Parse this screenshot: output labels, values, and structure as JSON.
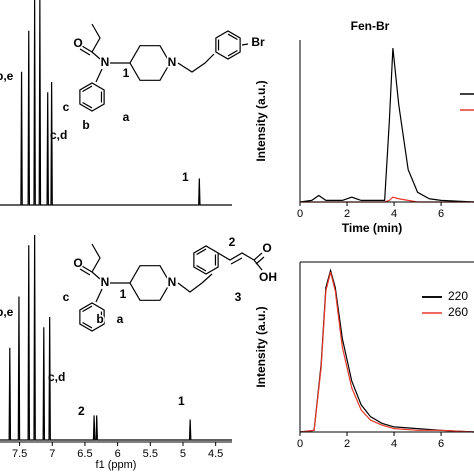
{
  "chart_data": [
    {
      "type": "line",
      "x": [
        7.8,
        7.48,
        7.47,
        7.46,
        7.37,
        7.36,
        7.35,
        7.28,
        7.27,
        7.26,
        7.2,
        7.19,
        7.18,
        7.08,
        7.07,
        7.06,
        7.02,
        7.01,
        7.0,
        4.76,
        4.75,
        4.74,
        4.25
      ],
      "series": [
        {
          "color": "#000000",
          "values": [
            0,
            0,
            0.65,
            0,
            0,
            0.85,
            0,
            0,
            1.0,
            0,
            0,
            1.0,
            0,
            0,
            0.55,
            0,
            0,
            0.6,
            0,
            0,
            0.13,
            0,
            0
          ]
        }
      ],
      "xlim": [
        7.8,
        4.25
      ],
      "ylim": [
        0,
        1
      ],
      "annotations": [
        "b,e",
        "c,d",
        "1"
      ]
    },
    {
      "type": "line",
      "x": [
        7.8,
        7.66,
        7.65,
        7.64,
        7.52,
        7.51,
        7.5,
        7.37,
        7.36,
        7.35,
        7.28,
        7.27,
        7.26,
        7.14,
        7.13,
        7.12,
        7.05,
        7.04,
        7.03,
        6.37,
        6.36,
        6.35,
        6.33,
        6.32,
        6.31,
        4.9,
        4.89,
        4.88,
        4.25
      ],
      "series": [
        {
          "color": "#000000",
          "values": [
            0,
            0,
            0.45,
            0,
            0,
            0.7,
            0,
            0,
            0.95,
            0,
            0,
            1.0,
            0,
            0,
            0.55,
            0,
            0,
            0.6,
            0,
            0,
            0.12,
            0,
            0,
            0.12,
            0,
            0,
            0.1,
            0,
            0
          ]
        }
      ],
      "xlim": [
        7.8,
        4.25
      ],
      "ylim": [
        0,
        1
      ],
      "xticks": [
        7.5,
        7.0,
        6.5,
        6.0,
        5.5,
        5.0,
        4.5
      ],
      "xlabel": "f1 (ppm)",
      "annotations": [
        "b,e",
        "c,d",
        "2",
        "1"
      ]
    },
    {
      "type": "line",
      "title": "Fen-Br",
      "xlabel": "Time (min)",
      "ylabel": "Intensity (a.u.)",
      "x": [
        0,
        0.5,
        0.8,
        1.1,
        1.8,
        2.2,
        2.6,
        3.6,
        3.8,
        3.95,
        4.2,
        4.6,
        5,
        5.5,
        6,
        7.4
      ],
      "series": [
        {
          "color": "#000000",
          "values": [
            0,
            0.01,
            0.04,
            0.01,
            0.01,
            0.03,
            0.01,
            0.01,
            0.5,
            0.95,
            0.6,
            0.2,
            0.06,
            0.02,
            0.01,
            0
          ]
        },
        {
          "color": "#e8382a",
          "values": [
            0,
            0,
            0,
            0,
            0,
            0,
            0,
            0,
            0.01,
            0.03,
            0.02,
            0.01,
            0,
            0,
            0,
            0
          ]
        }
      ],
      "xlim": [
        0,
        7.4
      ],
      "ylim": [
        0,
        1
      ],
      "xticks": [
        0,
        2,
        4,
        6
      ]
    },
    {
      "type": "line",
      "ylabel": "Intensity (a.u.)",
      "x": [
        0,
        0.6,
        0.9,
        1.1,
        1.3,
        1.5,
        1.8,
        2.2,
        2.6,
        3,
        3.5,
        4,
        5,
        6,
        7.4
      ],
      "series": [
        {
          "name": "220",
          "color": "#000000",
          "values": [
            0,
            0.01,
            0.4,
            0.85,
            0.95,
            0.85,
            0.55,
            0.3,
            0.16,
            0.09,
            0.05,
            0.03,
            0.02,
            0.01,
            0
          ]
        },
        {
          "name": "260",
          "color": "#e8382a",
          "values": [
            0,
            0.01,
            0.38,
            0.83,
            0.94,
            0.83,
            0.5,
            0.26,
            0.13,
            0.07,
            0.04,
            0.02,
            0.01,
            0.01,
            0
          ]
        }
      ],
      "xlim": [
        0,
        7.4
      ],
      "ylim": [
        0,
        1
      ],
      "xticks": [
        0,
        2,
        4,
        6
      ]
    }
  ],
  "structures": [
    {
      "labels": [
        "O",
        "N",
        "1",
        "N",
        "Br",
        "c",
        "b",
        "a"
      ]
    },
    {
      "labels": [
        "O",
        "N",
        "1",
        "N",
        "2",
        "3",
        "O",
        "OH",
        "c",
        "b",
        "a"
      ]
    }
  ]
}
